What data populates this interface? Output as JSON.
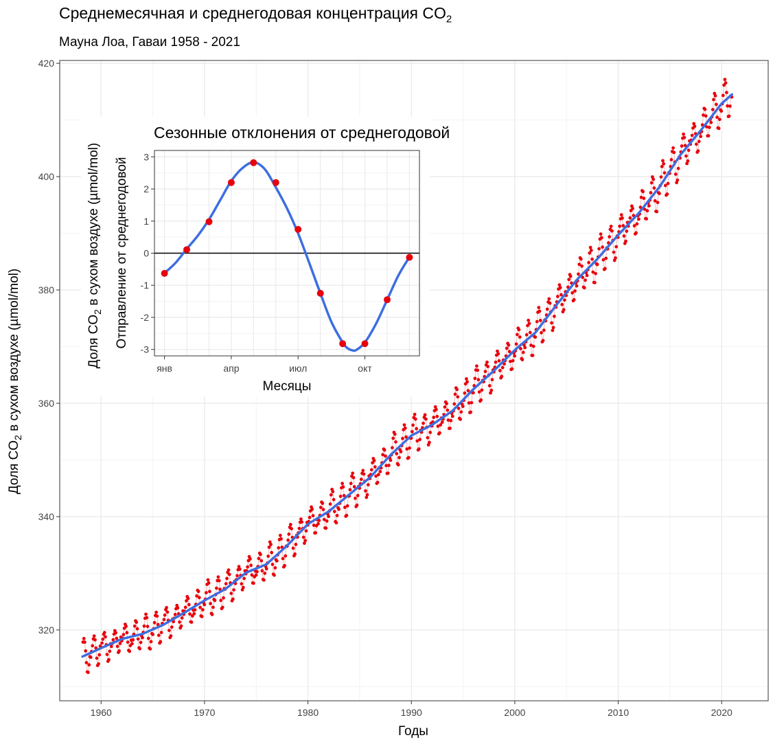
{
  "header": {
    "title": "Среднемесячная и среднегодовая концентрация CO",
    "title_sub": "2",
    "subtitle": "Мауна Лоа, Гаваи 1958 - 2021"
  },
  "colors": {
    "points": "#e8000b",
    "trend": "#3d6ee0",
    "grid": "#ebebeb",
    "axis_text": "#444444"
  },
  "chart_data": [
    {
      "type": "scatter",
      "description_free": true,
      "xlabel": "Годы",
      "ylabel_parts": [
        "Доля CO",
        "2",
        " в сухом воздухе (µmol/mol)"
      ],
      "xlim": [
        1956,
        2024.5
      ],
      "ylim": [
        307.5,
        420.5
      ],
      "x_ticks": [
        "1960",
        "1970",
        "1980",
        "1990",
        "2000",
        "2010",
        "2020"
      ],
      "y_ticks": [
        "320",
        "340",
        "360",
        "380",
        "400",
        "420"
      ],
      "grid": true,
      "series": [
        {
          "kind": "monthly_points",
          "x_start": 1958.25,
          "x_end": 2021.0,
          "step": 0.0833
        },
        {
          "kind": "annual_trend_line",
          "x": [
            1958.2,
            1960,
            1962,
            1964,
            1966,
            1968,
            1970,
            1972,
            1974,
            1976,
            1978,
            1980,
            1982,
            1984,
            1986,
            1988,
            1990,
            1992,
            1994,
            1996,
            1998,
            2000,
            2002,
            2004,
            2006,
            2008,
            2010,
            2012,
            2014,
            2016,
            2018,
            2020,
            2021
          ],
          "y": [
            315.3,
            316.8,
            318.4,
            319.3,
            320.9,
            323.0,
            325.2,
            327.2,
            330.1,
            331.6,
            334.9,
            338.7,
            340.9,
            343.9,
            346.9,
            350.9,
            354.3,
            356.2,
            358.7,
            362.5,
            365.8,
            369.4,
            372.5,
            377.3,
            381.8,
            385.5,
            389.7,
            393.6,
            398.2,
            403.8,
            408.2,
            412.9,
            414.5
          ]
        }
      ]
    },
    {
      "type": "line",
      "title": "Сезонные отклонения от среднегодовой",
      "xlabel": "Месяцы",
      "ylabel_line1_parts": [
        "Доля CO",
        "2",
        " в сухом воздухе (µmol/mol)"
      ],
      "ylabel_line2": "Отправление от среднегодовой",
      "xlim": [
        0.55,
        12.45
      ],
      "ylim": [
        -3.2,
        3.2
      ],
      "x_ticks": [
        {
          "x": 1,
          "label": "янв"
        },
        {
          "x": 4,
          "label": "апр"
        },
        {
          "x": 7,
          "label": "июл"
        },
        {
          "x": 10,
          "label": "окт"
        }
      ],
      "y_ticks": [
        "3",
        "2",
        "1",
        "0",
        "-1",
        "-2",
        "-3"
      ],
      "hline": 0,
      "x": [
        1,
        2,
        3,
        4,
        5,
        6,
        7,
        8,
        9,
        10,
        11,
        12
      ],
      "values": [
        -0.63,
        0.11,
        0.98,
        2.2,
        2.82,
        2.2,
        0.74,
        -1.25,
        -2.82,
        -2.82,
        -1.45,
        -0.13
      ],
      "curve": {
        "x": [
          1,
          1.5,
          2,
          2.5,
          3,
          3.5,
          4,
          4.5,
          5,
          5.5,
          6,
          6.5,
          7,
          7.5,
          8,
          8.5,
          9,
          9.2,
          9.4,
          9.6,
          10,
          10.5,
          11,
          11.5,
          12
        ],
        "y": [
          -0.62,
          -0.3,
          0.13,
          0.55,
          1.05,
          1.65,
          2.25,
          2.65,
          2.83,
          2.62,
          2.05,
          1.4,
          0.62,
          -0.3,
          -1.25,
          -2.15,
          -2.78,
          -2.95,
          -3.02,
          -3.02,
          -2.78,
          -2.2,
          -1.45,
          -0.7,
          -0.12
        ]
      }
    }
  ]
}
